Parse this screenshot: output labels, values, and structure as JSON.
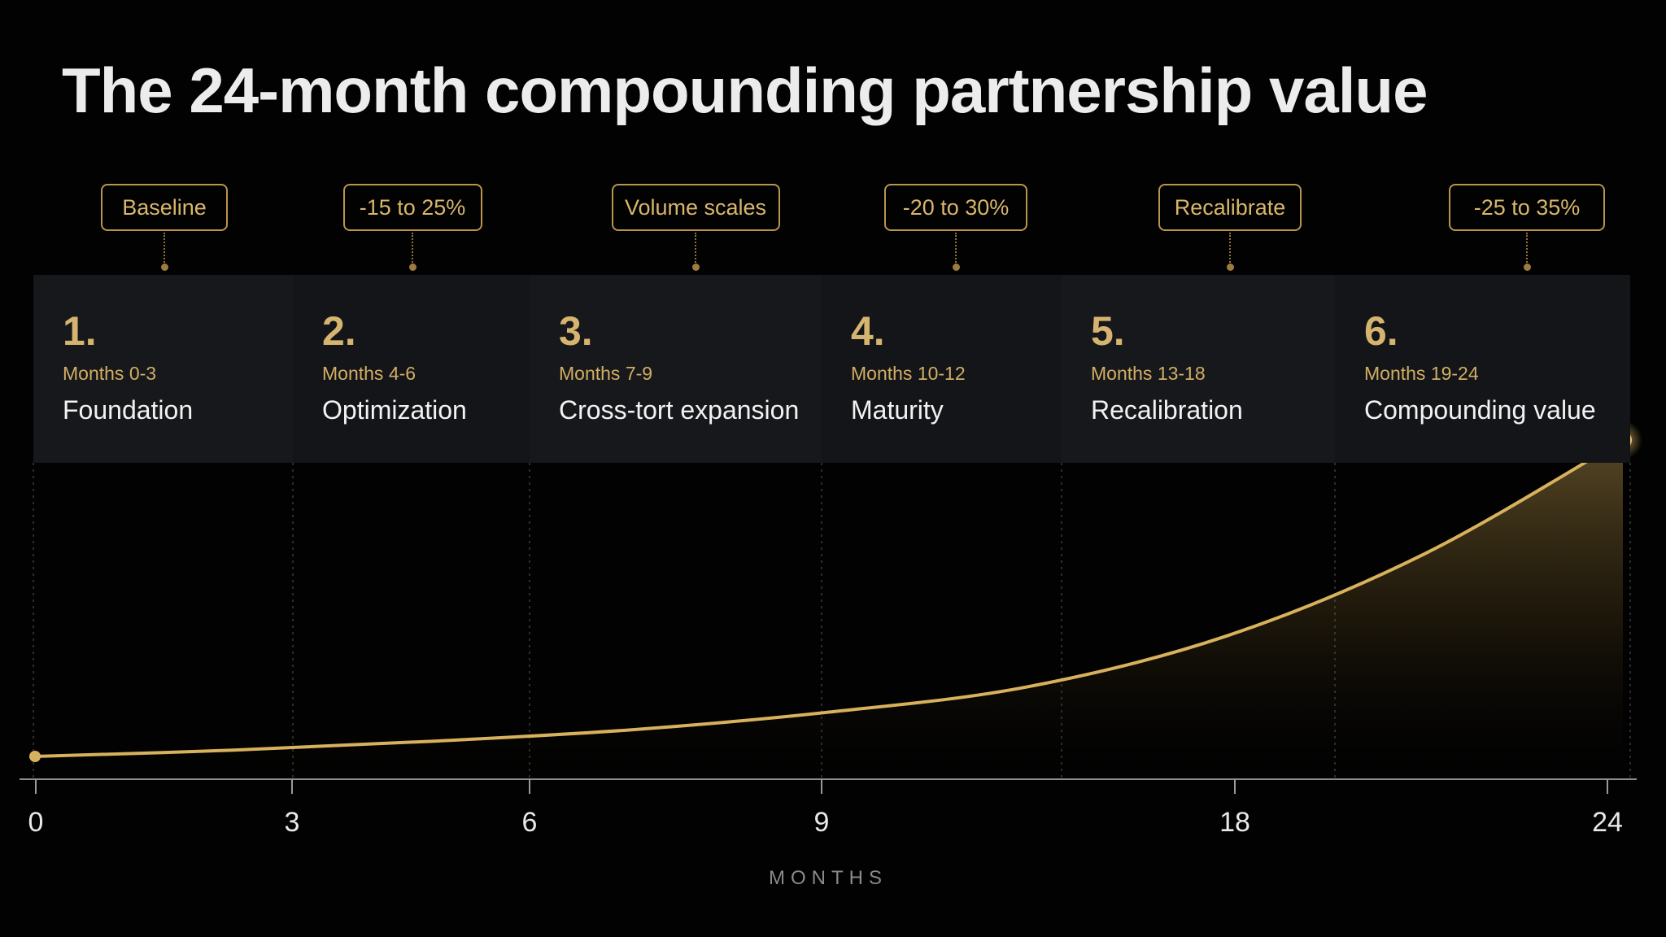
{
  "title": "The 24-month compounding partnership value",
  "phases": [
    {
      "number": "1.",
      "range": "Months 0-3",
      "name": "Foundation",
      "tag": "Baseline"
    },
    {
      "number": "2.",
      "range": "Months 4-6",
      "name": "Optimization",
      "tag": "-15 to 25%"
    },
    {
      "number": "3.",
      "range": "Months 7-9",
      "name": "Cross-tort expansion",
      "tag": "Volume scales"
    },
    {
      "number": "4.",
      "range": "Months 10-12",
      "name": "Maturity",
      "tag": "-20 to 30%"
    },
    {
      "number": "5.",
      "range": "Months 13-18",
      "name": "Recalibration",
      "tag": "Recalibrate"
    },
    {
      "number": "6.",
      "range": "Months 19-24",
      "name": "Compounding value",
      "tag": "-25 to 35%"
    }
  ],
  "colors": {
    "accent": "#d8b15c",
    "panel": "#15171a",
    "background": "#020202"
  },
  "chart_data": {
    "type": "area",
    "title": "The 24-month compounding partnership value",
    "xlabel": "MONTHS",
    "ylabel": "",
    "x_ticks": [
      "0",
      "3",
      "6",
      "9",
      "18",
      "24"
    ],
    "x_positions": [
      0,
      3,
      6,
      9,
      18,
      24
    ],
    "y_axis_visible": false,
    "grid": false,
    "series": [
      {
        "x": [
          0,
          3,
          6,
          9,
          12,
          15,
          18,
          21,
          24
        ],
        "y": [
          1.0,
          1.05,
          1.12,
          1.21,
          1.35,
          1.55,
          1.95,
          2.6,
          3.5
        ]
      }
    ]
  }
}
